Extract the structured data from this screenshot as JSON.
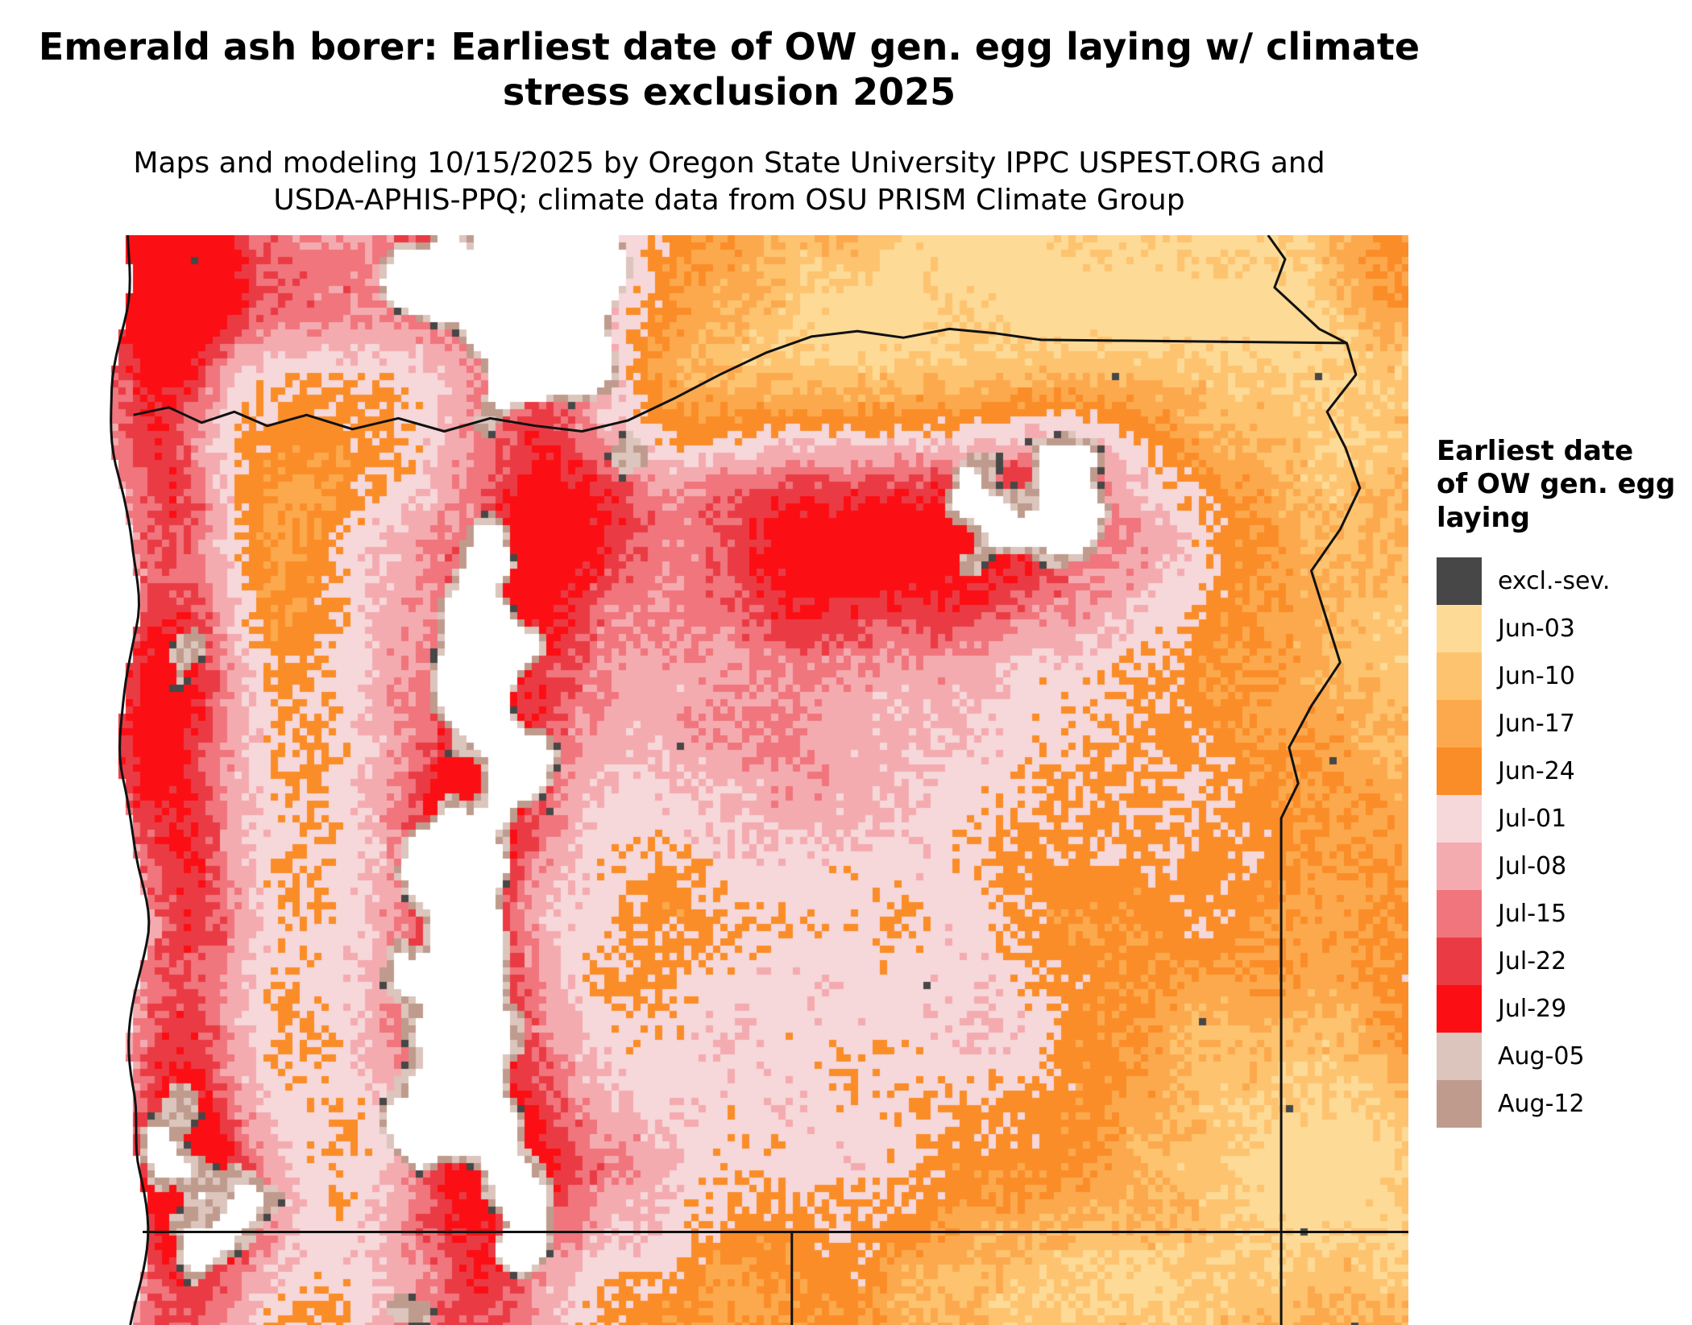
{
  "title_lines": [
    "Emerald ash borer: Earliest date of OW gen. egg laying w/ climate",
    "stress exclusion 2025"
  ],
  "subtitle_lines": [
    "Maps and modeling 10/15/2025 by Oregon State University IPPC USPEST.ORG and",
    "USDA-APHIS-PPQ; climate data from OSU PRISM Climate Group"
  ],
  "legend": {
    "title_lines": [
      "Earliest date",
      "of OW gen. egg",
      "laying"
    ],
    "entries": [
      {
        "label": "excl.-sev.",
        "color": "#474747"
      },
      {
        "label": "Jun-03",
        "color": "#fdda96"
      },
      {
        "label": "Jun-10",
        "color": "#fdc36f"
      },
      {
        "label": "Jun-17",
        "color": "#fca94e"
      },
      {
        "label": "Jun-24",
        "color": "#fb8d28"
      },
      {
        "label": "Jul-01",
        "color": "#f6d7da"
      },
      {
        "label": "Jul-08",
        "color": "#f4abb0"
      },
      {
        "label": "Jul-15",
        "color": "#f0757c"
      },
      {
        "label": "Jul-22",
        "color": "#ea3b44"
      },
      {
        "label": "Jul-29",
        "color": "#fb0f14"
      },
      {
        "label": "Aug-05",
        "color": "#dbc5bd"
      },
      {
        "label": "Aug-12",
        "color": "#bf9b8e"
      }
    ]
  },
  "map": {
    "region": "Oregon and adjacent Washington, Idaho, California, Nevada",
    "no_data_color": "#ffffff",
    "border_color": "#111111"
  }
}
